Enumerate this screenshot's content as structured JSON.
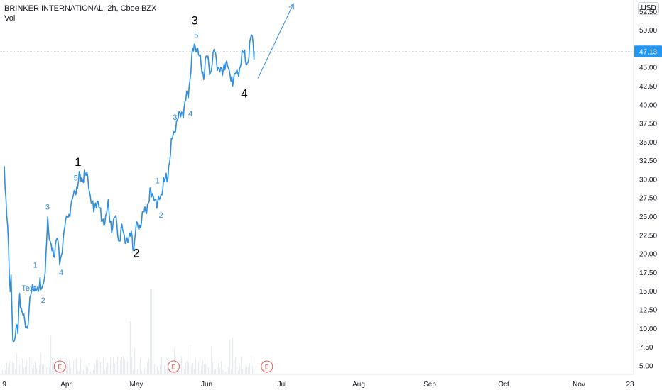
{
  "header": {
    "title": "BRINKER INTERNATIONAL, 2h, Cboe BZX",
    "volume_label": "Vol",
    "currency": "USD"
  },
  "colors": {
    "price_line": "#2e8ee0",
    "wave_label_minor": "#2e8ee0",
    "wave_label_major": "#000000",
    "earnings_marker": "#e05a5a",
    "last_price_badge": "#2196f3",
    "volume_bar": "#e8ecef",
    "arrow": "#2e8ee0"
  },
  "chart_data": {
    "type": "line",
    "title": "BRINKER INTERNATIONAL, 2h, Cboe BZX",
    "x_ticks": [
      "9",
      "Apr",
      "May",
      "Jun",
      "Jul",
      "Aug",
      "Sep",
      "Oct",
      "Nov",
      "23"
    ],
    "y_ticks": [
      "5.00",
      "7.50",
      "10.00",
      "12.50",
      "15.00",
      "17.50",
      "20.00",
      "22.50",
      "25.00",
      "27.50",
      "30.00",
      "32.50",
      "35.00",
      "37.50",
      "40.00",
      "42.50",
      "45.00",
      "47.50",
      "50.00",
      "52.50"
    ],
    "ylim": [
      3.8,
      54
    ],
    "last_price": "47.13",
    "price_series_knots": [
      [
        0,
        32.5
      ],
      [
        0.02,
        28.5
      ],
      [
        0.06,
        23
      ],
      [
        0.09,
        14
      ],
      [
        0.11,
        17
      ],
      [
        0.14,
        8.5
      ],
      [
        0.16,
        7.8
      ],
      [
        0.2,
        10
      ],
      [
        0.22,
        9.8
      ],
      [
        0.25,
        15.5
      ],
      [
        0.27,
        12.2
      ],
      [
        0.31,
        11.5
      ],
      [
        0.35,
        10.5
      ],
      [
        0.38,
        10.3
      ],
      [
        0.41,
        13
      ],
      [
        0.44,
        15
      ],
      [
        0.47,
        16.5
      ],
      [
        0.5,
        15
      ],
      [
        0.55,
        14.8
      ],
      [
        0.58,
        16.8
      ],
      [
        0.62,
        15.2
      ],
      [
        0.66,
        16.5
      ],
      [
        0.7,
        25
      ],
      [
        0.72,
        23.5
      ],
      [
        0.75,
        20.5
      ],
      [
        0.8,
        19.8
      ],
      [
        0.85,
        22.5
      ],
      [
        0.9,
        18.5
      ],
      [
        0.95,
        22
      ],
      [
        1,
        24.5
      ],
      [
        1.08,
        26.5
      ],
      [
        1.14,
        29
      ],
      [
        1.2,
        30
      ],
      [
        1.28,
        31
      ],
      [
        1.35,
        28
      ],
      [
        1.4,
        25.5
      ],
      [
        1.45,
        27.5
      ],
      [
        1.5,
        24.5
      ],
      [
        1.55,
        24.5
      ],
      [
        1.6,
        26
      ],
      [
        1.65,
        23.5
      ],
      [
        1.7,
        25
      ],
      [
        1.75,
        22
      ],
      [
        1.8,
        23
      ],
      [
        1.85,
        22
      ],
      [
        1.9,
        21.5
      ],
      [
        1.93,
        23
      ],
      [
        1.96,
        20.5
      ],
      [
        2,
        23.5
      ],
      [
        2.05,
        24
      ],
      [
        2.1,
        25.5
      ],
      [
        2.15,
        26.5
      ],
      [
        2.2,
        28
      ],
      [
        2.25,
        28.2
      ],
      [
        2.3,
        26
      ],
      [
        2.33,
        27.5
      ],
      [
        2.36,
        28.5
      ],
      [
        2.4,
        29.5
      ],
      [
        2.45,
        31
      ],
      [
        2.5,
        34.5
      ],
      [
        2.55,
        37
      ],
      [
        2.6,
        38
      ],
      [
        2.65,
        39
      ],
      [
        2.7,
        40
      ],
      [
        2.75,
        42.5
      ],
      [
        2.8,
        47
      ],
      [
        2.85,
        48.2
      ],
      [
        2.9,
        46
      ],
      [
        2.95,
        44
      ],
      [
        3,
        46.5
      ],
      [
        3.05,
        44.5
      ],
      [
        3.1,
        47
      ],
      [
        3.15,
        45.5
      ],
      [
        3.2,
        44
      ],
      [
        3.25,
        46
      ],
      [
        3.3,
        44
      ],
      [
        3.35,
        43.5
      ],
      [
        3.4,
        44
      ],
      [
        3.45,
        45.5
      ],
      [
        3.5,
        47
      ],
      [
        3.55,
        45.2
      ],
      [
        3.57,
        47
      ],
      [
        3.6,
        50
      ],
      [
        3.63,
        47.13
      ]
    ],
    "wave_labels_minor": [
      {
        "text": "1",
        "x": 0.5,
        "y": 18.5
      },
      {
        "text": "2",
        "x": 0.63,
        "y": 13.8
      },
      {
        "text": "3",
        "x": 0.7,
        "y": 26.3
      },
      {
        "text": "4",
        "x": 0.92,
        "y": 17.5
      },
      {
        "text": "5",
        "x": 1.14,
        "y": 30.2
      },
      {
        "text": "1",
        "x": 2.3,
        "y": 29.8
      },
      {
        "text": "2",
        "x": 2.35,
        "y": 25.2
      },
      {
        "text": "3",
        "x": 2.55,
        "y": 38.3
      },
      {
        "text": "4",
        "x": 2.77,
        "y": 38.8
      },
      {
        "text": "5",
        "x": 2.85,
        "y": 49.3
      }
    ],
    "wave_labels_major": [
      {
        "text": "1",
        "x": 1.17,
        "y": 32.3
      },
      {
        "text": "2",
        "x": 2.0,
        "y": 20.1
      },
      {
        "text": "3",
        "x": 2.83,
        "y": 51.3
      },
      {
        "text": "4",
        "x": 3.5,
        "y": 41.5
      }
    ],
    "text_note": {
      "text": "Text",
      "x": 0.28,
      "y": 15.4
    },
    "earnings_markers": {
      "label": "E",
      "x": [
        0.9,
        2.53,
        3.8
      ]
    },
    "projection_arrow": {
      "from": [
        3.68,
        43.5
      ],
      "to": [
        4.15,
        53.5
      ]
    }
  }
}
